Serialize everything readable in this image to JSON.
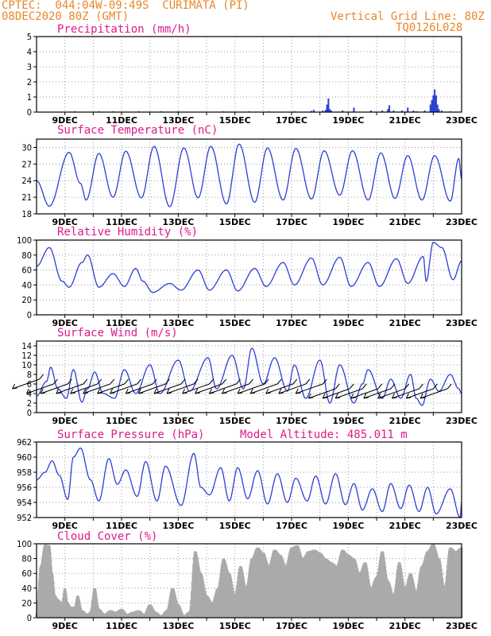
{
  "header": {
    "line1": "CPTEC:  044:04W-09:49S  CURIMATA (PI)",
    "line2": "08DEC2020 80Z (GMT)",
    "right1": "Vertical Grid Line: 80Z",
    "right2": "TQ0126L028"
  },
  "x_labels": [
    "9DEC",
    "11DEC",
    "13DEC",
    "15DEC",
    "17DEC",
    "19DEC",
    "21DEC",
    "23DEC"
  ],
  "colors": {
    "line": "#2b3fd6",
    "bar": "#2b3fd6",
    "cloud": "#aaaaaa",
    "title": "#e0198a",
    "header": "#e8872a"
  },
  "chart_data": [
    {
      "type": "bar",
      "title": "Precipitation (mm/h)",
      "ylim": [
        0,
        5
      ],
      "yticks": [
        0,
        1,
        2,
        3,
        4,
        5
      ],
      "x": [
        9.35,
        10.2,
        10.7,
        11.6,
        12.4,
        13.0,
        14.6,
        15.5,
        16.2,
        17.1,
        17.7,
        17.78,
        18.1,
        18.2,
        18.25,
        18.3,
        18.35,
        18.4,
        18.8,
        19.2,
        19.8,
        20.2,
        20.4,
        20.45,
        20.6,
        20.9,
        21.1,
        21.3,
        21.4,
        21.7,
        21.9,
        21.95,
        22.0,
        22.05,
        22.1,
        22.15,
        22.2,
        22.3,
        22.6
      ],
      "values": [
        0.05,
        0.05,
        0.05,
        0.05,
        0.05,
        0.05,
        0.05,
        0.05,
        0.05,
        0.05,
        0.08,
        0.15,
        0.1,
        0.15,
        0.5,
        0.9,
        0.2,
        0.1,
        0.1,
        0.3,
        0.1,
        0.1,
        0.2,
        0.45,
        0.1,
        0.1,
        0.3,
        0.1,
        0.05,
        0.1,
        0.5,
        0.8,
        1.1,
        1.5,
        1.1,
        0.5,
        0.2,
        0.1,
        0.05
      ]
    },
    {
      "type": "line",
      "title": "Surface Temperature (nC)",
      "ylim": [
        18,
        31.5
      ],
      "yticks": [
        18,
        21,
        24,
        27,
        30
      ],
      "extrema": [
        [
          8.0,
          24
        ],
        [
          8.45,
          19.4
        ],
        [
          9.15,
          29.1
        ],
        [
          9.55,
          23.5
        ],
        [
          9.75,
          20.5
        ],
        [
          10.2,
          28.9
        ],
        [
          10.7,
          21.0
        ],
        [
          11.15,
          29.3
        ],
        [
          11.7,
          20.9
        ],
        [
          12.15,
          30.2
        ],
        [
          12.7,
          19.3
        ],
        [
          13.2,
          29.9
        ],
        [
          13.7,
          20.9
        ],
        [
          14.15,
          30.2
        ],
        [
          14.7,
          19.8
        ],
        [
          15.15,
          30.6
        ],
        [
          15.7,
          20.1
        ],
        [
          16.15,
          29.9
        ],
        [
          16.7,
          20.5
        ],
        [
          17.15,
          29.8
        ],
        [
          17.7,
          20.7
        ],
        [
          18.15,
          29.4
        ],
        [
          18.7,
          21.4
        ],
        [
          19.15,
          29.4
        ],
        [
          19.7,
          20.5
        ],
        [
          20.15,
          29.0
        ],
        [
          20.65,
          20.8
        ],
        [
          21.1,
          28.5
        ],
        [
          21.6,
          20.5
        ],
        [
          22.05,
          28.5
        ],
        [
          22.6,
          20.3
        ],
        [
          22.9,
          28
        ],
        [
          23.0,
          24.3
        ]
      ]
    },
    {
      "type": "line",
      "title": "Relative Humidity (%)",
      "ylim": [
        0,
        100
      ],
      "yticks": [
        0,
        20,
        40,
        60,
        80,
        100
      ],
      "extrema": [
        [
          8.0,
          65
        ],
        [
          8.45,
          90
        ],
        [
          8.9,
          45
        ],
        [
          9.15,
          37
        ],
        [
          9.6,
          70
        ],
        [
          9.8,
          80
        ],
        [
          10.2,
          37
        ],
        [
          10.7,
          55
        ],
        [
          11.1,
          38
        ],
        [
          11.5,
          62
        ],
        [
          11.75,
          45
        ],
        [
          12.1,
          30
        ],
        [
          12.7,
          42
        ],
        [
          13.1,
          33
        ],
        [
          13.7,
          60
        ],
        [
          14.1,
          33
        ],
        [
          14.7,
          60
        ],
        [
          15.1,
          32
        ],
        [
          15.7,
          62
        ],
        [
          16.1,
          38
        ],
        [
          16.7,
          70
        ],
        [
          17.1,
          40
        ],
        [
          17.7,
          76
        ],
        [
          18.1,
          40
        ],
        [
          18.7,
          77
        ],
        [
          19.1,
          38
        ],
        [
          19.7,
          70
        ],
        [
          20.1,
          38
        ],
        [
          20.7,
          75
        ],
        [
          21.1,
          42
        ],
        [
          21.65,
          78
        ],
        [
          21.75,
          45
        ],
        [
          22.0,
          97
        ],
        [
          22.3,
          90
        ],
        [
          22.7,
          47
        ],
        [
          23.0,
          72
        ]
      ]
    },
    {
      "type": "line",
      "title": "Surface Wind (m/s)",
      "ylim": [
        0,
        15
      ],
      "yticks": [
        0,
        2,
        4,
        6,
        8,
        10,
        12,
        14
      ],
      "extrema": [
        [
          8.0,
          3.5
        ],
        [
          8.35,
          6.5
        ],
        [
          8.5,
          9.5
        ],
        [
          8.75,
          5
        ],
        [
          9.05,
          3
        ],
        [
          9.3,
          9
        ],
        [
          9.6,
          2.2
        ],
        [
          9.8,
          5
        ],
        [
          10.05,
          8.5
        ],
        [
          10.35,
          4
        ],
        [
          10.75,
          3
        ],
        [
          11.1,
          9
        ],
        [
          11.5,
          4
        ],
        [
          12.0,
          10
        ],
        [
          12.35,
          4
        ],
        [
          13.0,
          11
        ],
        [
          13.4,
          4.5
        ],
        [
          14.05,
          11.5
        ],
        [
          14.35,
          5
        ],
        [
          14.9,
          12
        ],
        [
          15.3,
          5
        ],
        [
          15.6,
          13.5
        ],
        [
          16.0,
          6
        ],
        [
          16.4,
          11.5
        ],
        [
          16.85,
          4.5
        ],
        [
          17.1,
          10
        ],
        [
          17.5,
          3
        ],
        [
          18.0,
          11
        ],
        [
          18.35,
          2
        ],
        [
          18.7,
          10
        ],
        [
          19.2,
          2
        ],
        [
          19.5,
          6
        ],
        [
          19.7,
          9
        ],
        [
          20.2,
          3
        ],
        [
          20.5,
          7
        ],
        [
          20.85,
          3
        ],
        [
          21.2,
          8
        ],
        [
          21.4,
          3
        ],
        [
          21.6,
          1.5
        ],
        [
          21.9,
          7
        ],
        [
          22.2,
          4.5
        ],
        [
          22.6,
          8
        ],
        [
          22.9,
          5
        ],
        [
          23.0,
          4
        ]
      ],
      "barbs": [
        [
          8.1,
          7
        ],
        [
          8.6,
          6
        ],
        [
          9.1,
          6
        ],
        [
          9.65,
          6
        ],
        [
          10.15,
          6
        ],
        [
          10.6,
          6
        ],
        [
          11.1,
          6
        ],
        [
          11.55,
          6
        ],
        [
          12.1,
          6
        ],
        [
          12.55,
          6
        ],
        [
          13.1,
          6
        ],
        [
          13.55,
          6
        ],
        [
          14.1,
          6
        ],
        [
          14.55,
          6
        ],
        [
          15.05,
          6
        ],
        [
          15.5,
          6
        ],
        [
          16.05,
          6
        ],
        [
          16.5,
          6
        ],
        [
          17.05,
          6
        ],
        [
          17.5,
          6
        ],
        [
          18.1,
          6
        ],
        [
          18.55,
          5
        ],
        [
          19.05,
          5
        ],
        [
          19.5,
          5
        ],
        [
          20.05,
          5
        ],
        [
          20.5,
          5
        ],
        [
          21.0,
          5
        ],
        [
          21.5,
          5
        ],
        [
          22.0,
          5
        ],
        [
          22.5,
          5
        ]
      ]
    },
    {
      "type": "line",
      "title": "Surface Pressure (hPa)",
      "subtitle": "Model Altitude: 485.011 m",
      "ylim": [
        952,
        962
      ],
      "yticks": [
        952,
        954,
        956,
        958,
        960,
        962
      ],
      "extrema": [
        [
          8.0,
          957
        ],
        [
          8.3,
          958
        ],
        [
          8.55,
          959.5
        ],
        [
          8.8,
          957.6
        ],
        [
          9.1,
          954.4
        ],
        [
          9.3,
          960
        ],
        [
          9.55,
          961.2
        ],
        [
          9.9,
          957
        ],
        [
          10.2,
          954.2
        ],
        [
          10.55,
          959.8
        ],
        [
          10.85,
          956.4
        ],
        [
          11.15,
          958.3
        ],
        [
          11.55,
          954.8
        ],
        [
          11.85,
          959.4
        ],
        [
          12.25,
          954.2
        ],
        [
          12.55,
          958.8
        ],
        [
          13.1,
          953.6
        ],
        [
          13.55,
          960.5
        ],
        [
          13.8,
          956
        ],
        [
          14.1,
          955
        ],
        [
          14.5,
          958.6
        ],
        [
          14.8,
          954.2
        ],
        [
          15.1,
          958.6
        ],
        [
          15.45,
          954.5
        ],
        [
          15.8,
          958.2
        ],
        [
          16.15,
          953.8
        ],
        [
          16.5,
          957.8
        ],
        [
          16.85,
          954
        ],
        [
          17.15,
          957.2
        ],
        [
          17.55,
          954.2
        ],
        [
          17.85,
          957.5
        ],
        [
          18.2,
          953.8
        ],
        [
          18.55,
          957.8
        ],
        [
          18.9,
          953.7
        ],
        [
          19.2,
          956.5
        ],
        [
          19.5,
          953
        ],
        [
          19.85,
          955.8
        ],
        [
          20.2,
          952.8
        ],
        [
          20.5,
          956.5
        ],
        [
          20.85,
          953.2
        ],
        [
          21.15,
          956.3
        ],
        [
          21.5,
          952.8
        ],
        [
          21.8,
          956
        ],
        [
          22.1,
          952.5
        ],
        [
          22.6,
          955.8
        ],
        [
          22.95,
          952
        ],
        [
          23.0,
          954
        ]
      ]
    },
    {
      "type": "area",
      "title": "Cloud Cover (%)",
      "ylim": [
        0,
        100
      ],
      "yticks": [
        0,
        20,
        40,
        60,
        80,
        100
      ],
      "x": [
        8.0,
        8.15,
        8.3,
        8.45,
        8.55,
        8.65,
        8.75,
        8.9,
        9.0,
        9.1,
        9.2,
        9.35,
        9.45,
        9.6,
        9.8,
        9.9,
        10.05,
        10.2,
        10.4,
        10.6,
        10.8,
        11.0,
        11.2,
        11.4,
        11.6,
        11.8,
        12.0,
        12.2,
        12.4,
        12.6,
        12.8,
        13.0,
        13.2,
        13.4,
        13.6,
        13.8,
        14.0,
        14.2,
        14.4,
        14.6,
        14.8,
        15.0,
        15.2,
        15.4,
        15.6,
        15.8,
        16.0,
        16.2,
        16.4,
        16.6,
        16.8,
        17.0,
        17.2,
        17.4,
        17.6,
        17.8,
        18.0,
        18.2,
        18.4,
        18.6,
        18.8,
        19.0,
        19.2,
        19.4,
        19.6,
        19.8,
        20.0,
        20.2,
        20.4,
        20.6,
        20.8,
        21.0,
        21.2,
        21.4,
        21.6,
        21.8,
        22.0,
        22.2,
        22.4,
        22.6,
        22.8,
        23.0
      ],
      "values": [
        5,
        70,
        99,
        98,
        60,
        30,
        25,
        20,
        40,
        20,
        15,
        15,
        30,
        10,
        5,
        8,
        40,
        12,
        5,
        10,
        8,
        12,
        5,
        8,
        10,
        5,
        18,
        8,
        3,
        10,
        40,
        18,
        3,
        8,
        90,
        60,
        30,
        20,
        40,
        80,
        60,
        30,
        70,
        40,
        80,
        95,
        88,
        70,
        92,
        85,
        70,
        95,
        98,
        80,
        90,
        92,
        88,
        80,
        75,
        70,
        92,
        85,
        80,
        60,
        75,
        40,
        55,
        90,
        50,
        30,
        75,
        40,
        60,
        35,
        70,
        90,
        100,
        80,
        40,
        95,
        90,
        95
      ]
    }
  ]
}
